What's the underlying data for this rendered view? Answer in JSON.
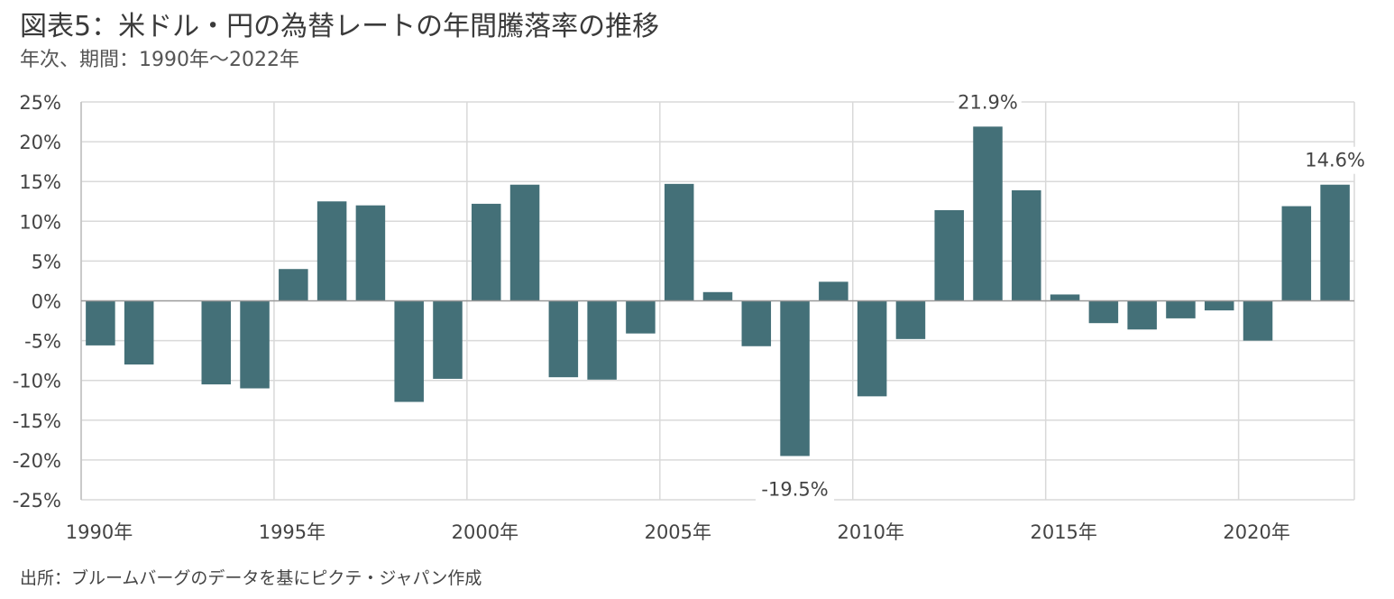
{
  "header": {
    "title": "図表5：米ドル・円の為替レートの年間騰落率の推移",
    "subtitle": "年次、期間：1990年～2022年"
  },
  "footer": {
    "source": "出所：ブルームバーグのデータを基にピクテ・ジャパン作成"
  },
  "chart_data": {
    "type": "bar",
    "x": [
      1990,
      1991,
      1992,
      1993,
      1994,
      1995,
      1996,
      1997,
      1998,
      1999,
      2000,
      2001,
      2002,
      2003,
      2004,
      2005,
      2006,
      2007,
      2008,
      2009,
      2010,
      2011,
      2012,
      2013,
      2014,
      2015,
      2016,
      2017,
      2018,
      2019,
      2020,
      2021,
      2022
    ],
    "values": [
      -5.6,
      -8.0,
      0.0,
      -10.5,
      -11.0,
      4.0,
      12.5,
      12.0,
      -12.7,
      -9.8,
      12.2,
      14.6,
      -9.6,
      -9.9,
      -4.1,
      14.7,
      1.1,
      -5.7,
      -19.5,
      2.4,
      -12.0,
      -4.8,
      11.4,
      21.9,
      13.9,
      0.8,
      -2.8,
      -3.6,
      -2.2,
      -1.2,
      -5.0,
      11.9,
      14.6
    ],
    "x_tick_labels": [
      "1990年",
      "1995年",
      "2000年",
      "2005年",
      "2010年",
      "2015年",
      "2020年"
    ],
    "y_tick_labels": [
      "25%",
      "20%",
      "15%",
      "10%",
      "5%",
      "0%",
      "-5%",
      "-10%",
      "-15%",
      "-20%",
      "-25%"
    ],
    "ylim": [
      -25,
      25
    ],
    "data_labels": [
      {
        "year": 2008,
        "text": "-19.5%"
      },
      {
        "year": 2013,
        "text": "21.9%"
      },
      {
        "year": 2022,
        "text": "14.6%"
      }
    ],
    "bar_color": "#447078",
    "grid": true
  }
}
